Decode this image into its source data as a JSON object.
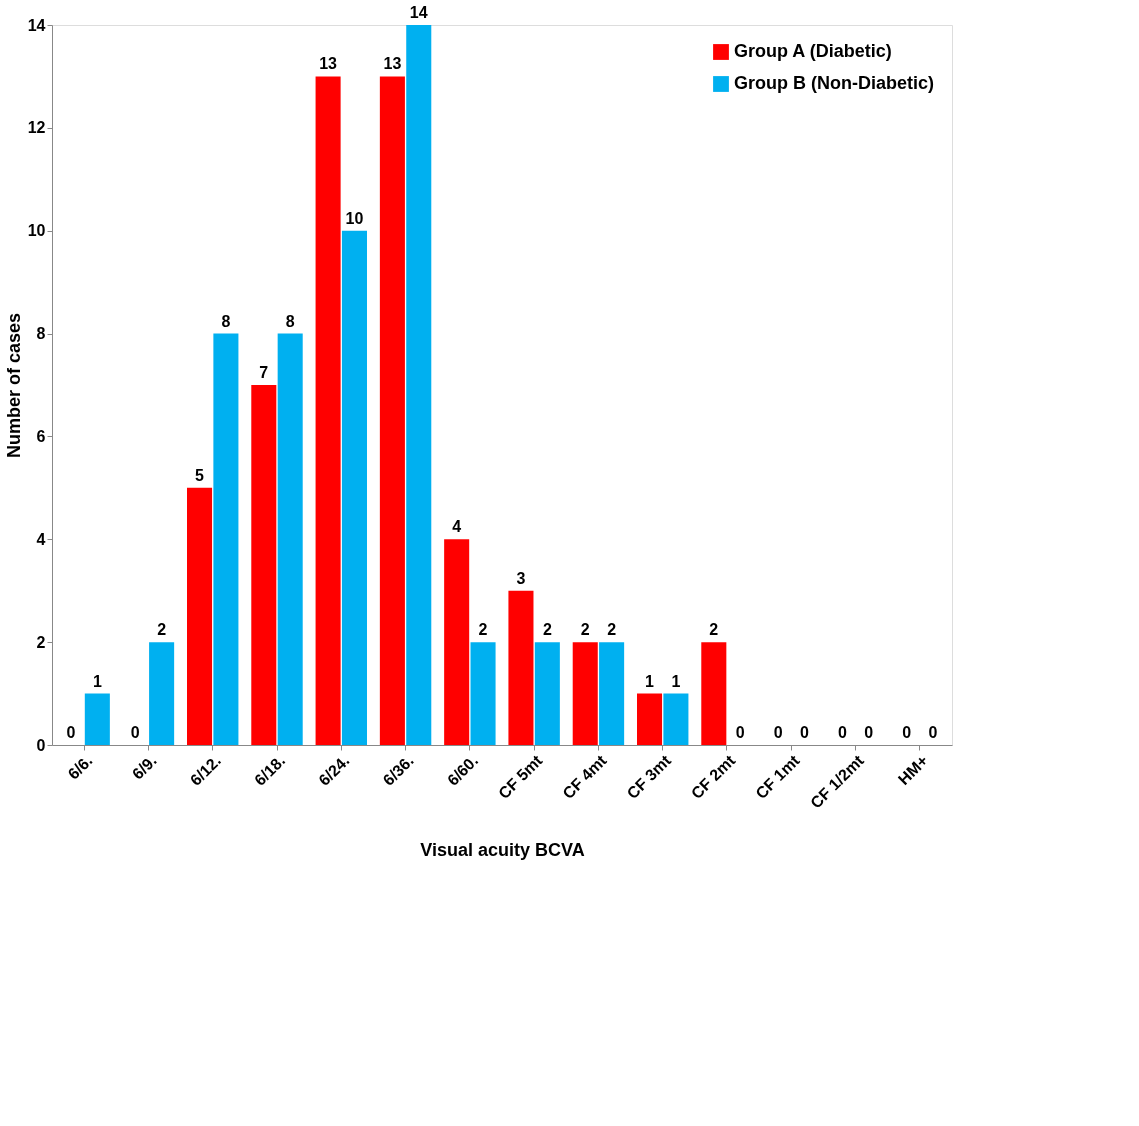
{
  "chart_data": {
    "type": "bar",
    "xlabel": "Visual acuity BCVA",
    "ylabel": "Number of cases",
    "categories": [
      "6/6.",
      "6/9.",
      "6/12.",
      "6/18.",
      "6/24.",
      "6/36.",
      "6/60.",
      "CF 5mt",
      "CF 4mt",
      "CF 3mt",
      "CF 2mt",
      "CF 1mt",
      "CF 1/2mt",
      "HM+"
    ],
    "series": [
      {
        "name": "Group A (Diabetic)",
        "color": "#ff0000",
        "values": [
          0,
          0,
          5,
          7,
          13,
          13,
          4,
          3,
          2,
          1,
          2,
          0,
          0,
          0
        ]
      },
      {
        "name": "Group B (Non-Diabetic)",
        "color": "#00b0f0",
        "values": [
          1,
          2,
          8,
          8,
          10,
          14,
          2,
          2,
          2,
          1,
          0,
          0,
          0,
          0
        ]
      }
    ],
    "ylim": [
      0,
      14
    ],
    "yticks": [
      0,
      2,
      4,
      6,
      8,
      10,
      12,
      14
    ],
    "data_labels": true,
    "legend": "top right",
    "grid": false
  }
}
